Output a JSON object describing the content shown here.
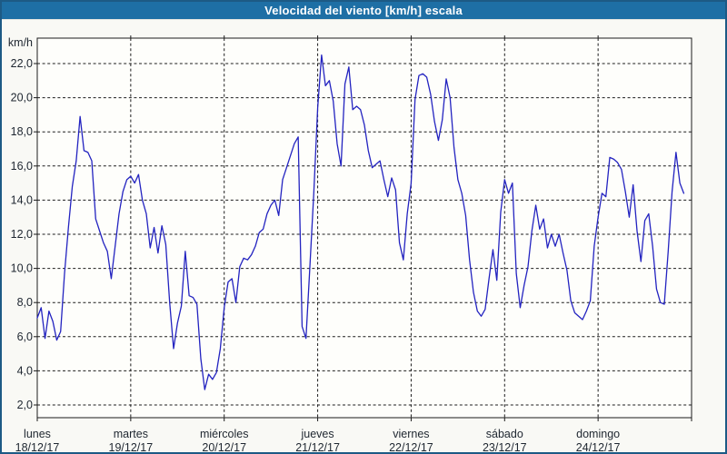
{
  "window": {
    "title": "Velocidad del viento [km/h] escala"
  },
  "colors": {
    "titlebar_bg": "#1e6fa5",
    "window_border": "#1d5a85",
    "line_color": "#2323c0",
    "grid_color": "#1c1c1c",
    "label_color": "#1e2630",
    "plot_bg": "#fefefb"
  },
  "chart_data": {
    "type": "line",
    "title": "Velocidad del viento [km/h] escala",
    "ylabel": "km/h",
    "unit_label": "km/h",
    "ylim": [
      0.5,
      23.5
    ],
    "y_ticks": [
      2,
      4,
      6,
      8,
      10,
      12,
      14,
      16,
      18,
      20,
      22
    ],
    "y_tick_labels": [
      "2,0",
      "4,0",
      "6,0",
      "8,0",
      "10,0",
      "12,0",
      "14,0",
      "16,0",
      "18,0",
      "20,0",
      "22,0"
    ],
    "grid": "dashed",
    "legend_position": "none",
    "x_unit": "hourly samples, midnight to midnight per day",
    "days": [
      {
        "name": "lunes",
        "date": "18/12/17",
        "hourly_kmh": [
          7.1,
          7.7,
          5.9,
          7.5,
          6.9,
          5.8,
          6.3,
          9.7,
          12.4,
          14.8,
          16.3,
          18.9,
          16.9,
          16.8,
          16.3,
          12.9,
          12.2,
          11.5,
          11.0,
          9.4,
          11.3,
          13.2,
          14.5,
          15.2
        ]
      },
      {
        "name": "martes",
        "date": "19/12/17",
        "hourly_kmh": [
          15.4,
          15.0,
          15.5,
          14.0,
          13.2,
          11.2,
          12.4,
          10.9,
          12.5,
          11.4,
          8.0,
          5.3,
          6.8,
          7.8,
          11.0,
          8.4,
          8.3,
          7.9,
          4.7,
          2.9,
          3.8,
          3.5,
          3.9,
          5.3
        ]
      },
      {
        "name": "miércoles",
        "date": "20/12/17",
        "hourly_kmh": [
          7.7,
          9.2,
          9.4,
          8.0,
          10.1,
          10.6,
          10.5,
          10.8,
          11.3,
          12.1,
          12.3,
          13.2,
          13.7,
          14.0,
          13.1,
          15.2,
          15.9,
          16.6,
          17.3,
          17.7,
          6.6,
          5.9,
          10.1,
          14.4
        ]
      },
      {
        "name": "jueves",
        "date": "21/12/17",
        "hourly_kmh": [
          19.4,
          22.5,
          20.7,
          21.0,
          19.8,
          17.3,
          16.0,
          20.8,
          21.8,
          19.3,
          19.5,
          19.3,
          18.4,
          16.9,
          15.9,
          16.1,
          16.3,
          15.2,
          14.2,
          15.3,
          14.6,
          11.5,
          10.5,
          13.2
        ]
      },
      {
        "name": "viernes",
        "date": "22/12/17",
        "hourly_kmh": [
          15.0,
          19.9,
          21.3,
          21.4,
          21.2,
          20.2,
          18.6,
          17.5,
          18.7,
          21.1,
          20.0,
          17.1,
          15.2,
          14.4,
          13.1,
          10.5,
          8.6,
          7.5,
          7.2,
          7.6,
          9.4,
          11.1,
          9.3,
          13.3
        ]
      },
      {
        "name": "sábado",
        "date": "23/12/17",
        "hourly_kmh": [
          15.2,
          14.4,
          15.0,
          9.7,
          7.7,
          9.0,
          10.1,
          12.2,
          13.7,
          12.3,
          12.9,
          11.2,
          12.0,
          11.3,
          12.0,
          10.9,
          9.9,
          8.1,
          7.4,
          7.2,
          7.0,
          7.5,
          8.1,
          11.3
        ]
      },
      {
        "name": "domingo",
        "date": "24/12/17",
        "hourly_kmh": [
          13.0,
          14.4,
          14.2,
          16.5,
          16.4,
          16.2,
          15.8,
          14.5,
          13.0,
          14.9,
          12.2,
          10.4,
          12.8,
          13.2,
          11.3,
          8.8,
          8.0,
          7.9,
          11.0,
          14.5,
          16.8,
          15.0,
          14.4
        ]
      }
    ]
  }
}
